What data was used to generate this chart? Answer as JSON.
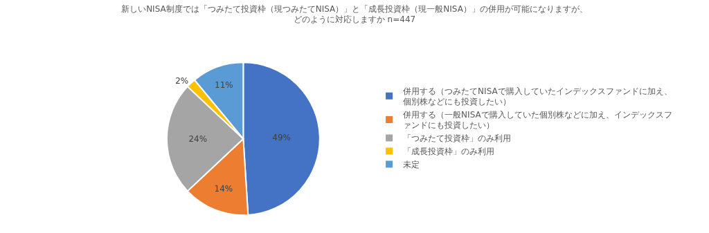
{
  "chart_data": {
    "type": "pie",
    "title": "新しいNISA制度では「つみたて投資枠（現つみたてNISA）」と「成長投資枠（現一般NISA）」の併用が可能になりますが、どのように対応しますか n=447",
    "categories": [
      "併用する（つみたてNISAで購入していたインデックスファンドに加え、個別株などにも投資したい）",
      "併用する（一般NISAで購入していた個別株などに加え、インデックスファンドにも投資したい）",
      "「つみたて投資枠」のみ利用",
      "「成長投資枠」のみ利用",
      "未定"
    ],
    "values": [
      49,
      14,
      24,
      2,
      11
    ],
    "value_labels": [
      "49%",
      "14%",
      "24%",
      "2%",
      "11%"
    ],
    "colors": [
      "#4472c4",
      "#ed7d31",
      "#a5a5a5",
      "#ffc000",
      "#5b9bd5"
    ],
    "legend": "right"
  }
}
